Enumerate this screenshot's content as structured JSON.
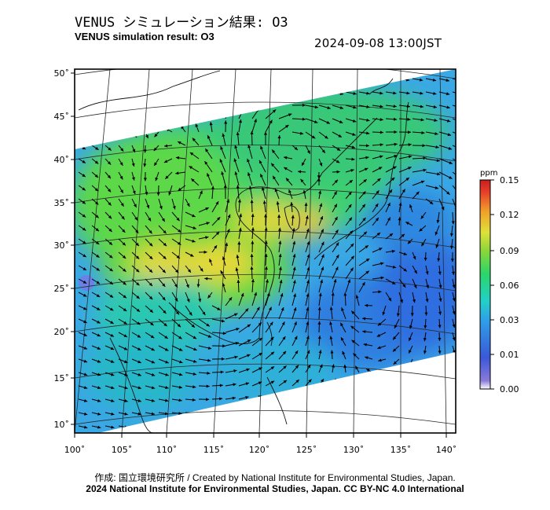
{
  "header": {
    "title_jp": "VENUS シミュレーション結果: O3",
    "title_en": "VENUS simulation result: O3",
    "timestamp": "2024-09-08 13:00JST"
  },
  "map": {
    "lat_ticks": [
      "50˚",
      "45˚",
      "40˚",
      "35˚",
      "30˚",
      "25˚",
      "20˚",
      "15˚",
      "10˚"
    ],
    "lon_ticks": [
      "100˚",
      "105˚",
      "110˚",
      "115˚",
      "120˚",
      "125˚",
      "130˚",
      "135˚",
      "140˚"
    ],
    "extent": {
      "lon_min": 100,
      "lon_max": 141,
      "lat_min": 9,
      "lat_max": 51
    }
  },
  "colorbar": {
    "unit": "ppm",
    "tick_labels": [
      "0.15",
      "0.12",
      "0.09",
      "0.06",
      "0.03",
      "0.01",
      "0.00"
    ],
    "colors": [
      "#ffffff",
      "#3a3ac8",
      "#2f7fe0",
      "#22c8d8",
      "#2ad67a",
      "#6fd63a",
      "#e8e83a",
      "#f0a02a",
      "#e83a2a",
      "#c81e1e"
    ]
  },
  "footer": {
    "credit_line1": "作成: 国立環境研究所 / Created by National Institute for Environmental Studies, Japan.",
    "credit_line2": "2024 National Institute for Environmental Studies, Japan. CC BY-NC 4.0 International"
  }
}
